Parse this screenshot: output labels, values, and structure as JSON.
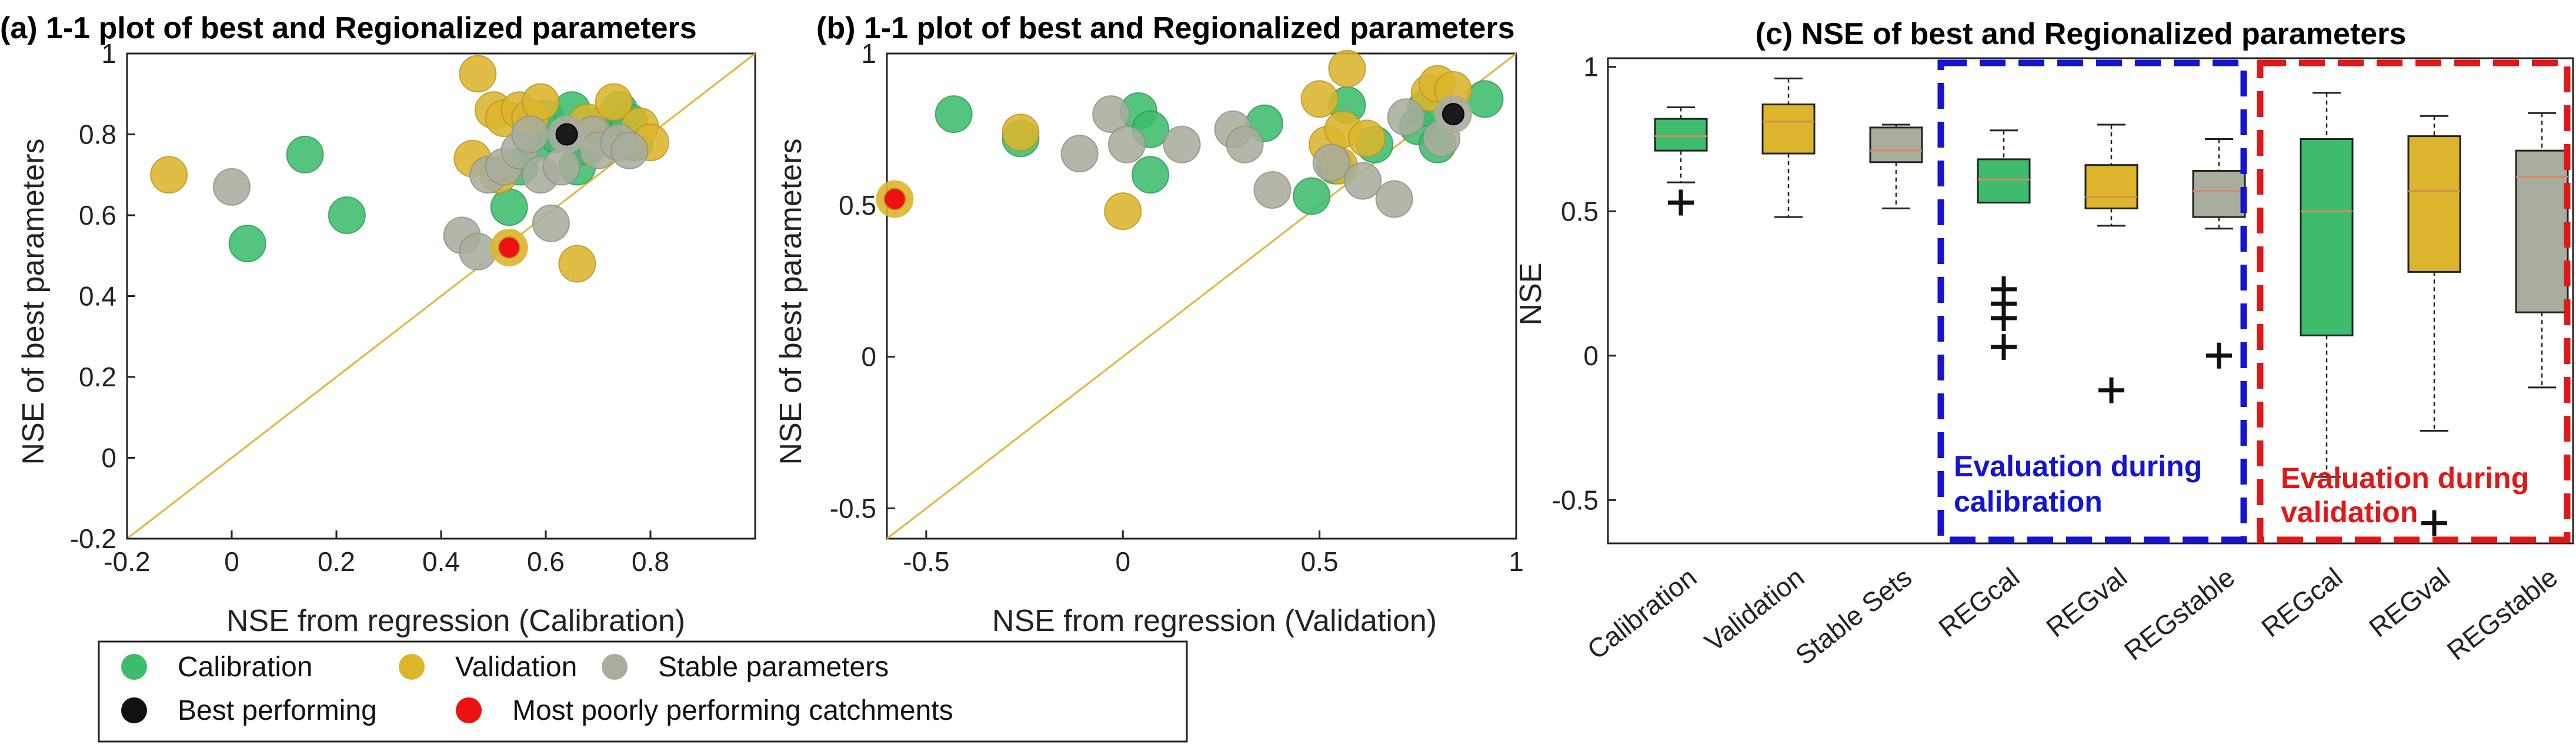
{
  "colors": {
    "calibration": "#3cbc6c",
    "calibration_edge": "#2a9a52",
    "validation": "#dcb52c",
    "validation_edge": "#b99422",
    "stable": "#a9ad9d",
    "stable_edge": "#8d9182",
    "best": "#1a1a1a",
    "worst": "#ee1111",
    "one_to_one": "#e3b43a",
    "box_cal": "#3cbc6c",
    "box_val": "#dcb52c",
    "box_stable": "#a9ad9d",
    "median": "#d88a5a",
    "blue_box": "#1414d2",
    "red_box": "#e01818"
  },
  "legend": {
    "items": [
      {
        "label": "Calibration",
        "color": "#3cbc6c"
      },
      {
        "label": "Validation",
        "color": "#dcb52c"
      },
      {
        "label": "Stable parameters",
        "color": "#a9ad9d"
      },
      {
        "label": "Best performing",
        "color": "#111111"
      },
      {
        "label": "Most poorly performing catchments",
        "color": "#ee1111"
      }
    ]
  },
  "chart_data": [
    {
      "type": "scatter",
      "title": "(a) 1-1 plot of best and Regionalized parameters",
      "xlabel": "NSE from regression (Calibration)",
      "ylabel": "NSE of best parameters",
      "xlim": [
        -0.2,
        1.0
      ],
      "ylim": [
        -0.2,
        1.0
      ],
      "xticks": [
        "-0.2",
        "0",
        "0.2",
        "0.4",
        "0.6",
        "0.8"
      ],
      "yticks": [
        "-0.2",
        "0",
        "0.2",
        "0.4",
        "0.6",
        "0.8",
        "1"
      ],
      "one_to_one": true,
      "series": [
        {
          "name": "Calibration",
          "points": [
            [
              0.03,
              0.53
            ],
            [
              0.14,
              0.75
            ],
            [
              0.22,
              0.6
            ],
            [
              0.53,
              0.62
            ],
            [
              0.55,
              0.72
            ],
            [
              0.58,
              0.78
            ],
            [
              0.62,
              0.8
            ],
            [
              0.66,
              0.72
            ],
            [
              0.68,
              0.77
            ],
            [
              0.7,
              0.82
            ],
            [
              0.74,
              0.86
            ],
            [
              0.76,
              0.83
            ],
            [
              0.77,
              0.78
            ],
            [
              0.6,
              0.84
            ],
            [
              0.65,
              0.86
            ]
          ]
        },
        {
          "name": "Validation",
          "points": [
            [
              -0.12,
              0.7
            ],
            [
              0.46,
              0.74
            ],
            [
              0.47,
              0.95
            ],
            [
              0.5,
              0.86
            ],
            [
              0.52,
              0.84
            ],
            [
              0.55,
              0.86
            ],
            [
              0.57,
              0.84
            ],
            [
              0.59,
              0.88
            ],
            [
              0.66,
              0.48
            ],
            [
              0.68,
              0.83
            ],
            [
              0.73,
              0.88
            ],
            [
              0.78,
              0.82
            ],
            [
              0.8,
              0.78
            ],
            [
              0.51,
              0.7
            ]
          ]
        },
        {
          "name": "Stable parameters",
          "points": [
            [
              0.0,
              0.67
            ],
            [
              0.44,
              0.55
            ],
            [
              0.47,
              0.51
            ],
            [
              0.49,
              0.7
            ],
            [
              0.52,
              0.72
            ],
            [
              0.55,
              0.76
            ],
            [
              0.57,
              0.8
            ],
            [
              0.59,
              0.7
            ],
            [
              0.61,
              0.58
            ],
            [
              0.63,
              0.72
            ],
            [
              0.69,
              0.8
            ],
            [
              0.7,
              0.76
            ],
            [
              0.74,
              0.78
            ],
            [
              0.76,
              0.76
            ]
          ]
        },
        {
          "name": "Best performing",
          "points": [
            [
              0.64,
              0.8
            ]
          ]
        },
        {
          "name": "Most poorly performing catchments",
          "points": [
            [
              0.53,
              0.52
            ]
          ]
        }
      ]
    },
    {
      "type": "scatter",
      "title": "(b) 1-1 plot of best and Regionalized parameters",
      "xlabel": "NSE from regression (Validation)",
      "ylabel": "NSE of best parameters",
      "xlim": [
        -0.6,
        1.0
      ],
      "ylim": [
        -0.6,
        1.0
      ],
      "xticks": [
        "-0.5",
        "0",
        "0.5",
        "1"
      ],
      "yticks": [
        "-0.5",
        "0",
        "0.5",
        "1"
      ],
      "one_to_one": true,
      "series": [
        {
          "name": "Calibration",
          "points": [
            [
              -0.43,
              0.8
            ],
            [
              -0.26,
              0.72
            ],
            [
              0.04,
              0.81
            ],
            [
              0.07,
              0.75
            ],
            [
              0.07,
              0.6
            ],
            [
              0.36,
              0.77
            ],
            [
              0.48,
              0.53
            ],
            [
              0.54,
              0.63
            ],
            [
              0.57,
              0.83
            ],
            [
              0.64,
              0.7
            ],
            [
              0.75,
              0.76
            ],
            [
              0.8,
              0.7
            ],
            [
              0.92,
              0.85
            ],
            [
              0.77,
              0.82
            ]
          ]
        },
        {
          "name": "Validation",
          "points": [
            [
              -0.26,
              0.74
            ],
            [
              0.0,
              0.48
            ],
            [
              0.5,
              0.85
            ],
            [
              0.52,
              0.7
            ],
            [
              0.56,
              0.75
            ],
            [
              0.57,
              0.95
            ],
            [
              0.62,
              0.72
            ],
            [
              0.78,
              0.87
            ],
            [
              0.8,
              0.9
            ],
            [
              0.84,
              0.88
            ],
            [
              0.55,
              0.63
            ]
          ]
        },
        {
          "name": "Stable parameters",
          "points": [
            [
              -0.11,
              0.67
            ],
            [
              -0.03,
              0.8
            ],
            [
              0.01,
              0.7
            ],
            [
              0.15,
              0.7
            ],
            [
              0.28,
              0.75
            ],
            [
              0.31,
              0.7
            ],
            [
              0.38,
              0.55
            ],
            [
              0.53,
              0.64
            ],
            [
              0.61,
              0.58
            ],
            [
              0.69,
              0.52
            ],
            [
              0.72,
              0.79
            ],
            [
              0.81,
              0.72
            ]
          ]
        },
        {
          "name": "Best performing",
          "points": [
            [
              0.84,
              0.8
            ]
          ]
        },
        {
          "name": "Most poorly performing catchments",
          "points": [
            [
              -0.58,
              0.52
            ]
          ]
        }
      ]
    },
    {
      "type": "box",
      "title": "(c) NSE of best and Regionalized parameters",
      "ylabel": "NSE",
      "ylim": [
        -0.65,
        1.03
      ],
      "yticks": [
        "-0.5",
        "0",
        "0.5",
        "1"
      ],
      "categories": [
        "Calibration",
        "Validation",
        "Stable Sets",
        "REGcal",
        "REGval",
        "REGstable",
        "REGcal",
        "REGval",
        "REGstable"
      ],
      "boxes": [
        {
          "label": "Calibration",
          "group": "cal",
          "min": 0.6,
          "q1": 0.71,
          "median": 0.76,
          "q3": 0.82,
          "max": 0.86,
          "outliers": [
            0.53
          ]
        },
        {
          "label": "Validation",
          "group": "val",
          "min": 0.48,
          "q1": 0.7,
          "median": 0.81,
          "q3": 0.87,
          "max": 0.96,
          "outliers": []
        },
        {
          "label": "Stable Sets",
          "group": "stable",
          "min": 0.51,
          "q1": 0.67,
          "median": 0.71,
          "q3": 0.79,
          "max": 0.8,
          "outliers": []
        },
        {
          "label": "REGcal",
          "group": "cal",
          "min": 0.53,
          "q1": 0.53,
          "median": 0.61,
          "q3": 0.68,
          "max": 0.78,
          "outliers": [
            0.23,
            0.18,
            0.13,
            0.03
          ]
        },
        {
          "label": "REGval",
          "group": "val",
          "min": 0.45,
          "q1": 0.51,
          "median": 0.55,
          "q3": 0.66,
          "max": 0.8,
          "outliers": [
            -0.12
          ]
        },
        {
          "label": "REGstable",
          "group": "stable",
          "min": 0.44,
          "q1": 0.48,
          "median": 0.57,
          "q3": 0.64,
          "max": 0.75,
          "outliers": [
            0.0
          ]
        },
        {
          "label": "REGcal",
          "group": "cal",
          "min": -0.42,
          "q1": 0.07,
          "median": 0.5,
          "q3": 0.75,
          "max": 0.91,
          "outliers": []
        },
        {
          "label": "REGval",
          "group": "val",
          "min": -0.26,
          "q1": 0.29,
          "median": 0.57,
          "q3": 0.76,
          "max": 0.83,
          "outliers": [
            -0.58
          ]
        },
        {
          "label": "REGstable",
          "group": "stable",
          "min": -0.11,
          "q1": 0.15,
          "median": 0.62,
          "q3": 0.71,
          "max": 0.84,
          "outliers": []
        }
      ],
      "annotations": [
        {
          "text_lines": [
            "Evaluation during",
            "calibration"
          ],
          "color": "#1414d2",
          "spans": [
            "REGcal",
            "REGval",
            "REGstable"
          ]
        },
        {
          "text_lines": [
            "Evaluation during",
            "validation"
          ],
          "color": "#e01818",
          "spans": [
            "REGcal",
            "REGval",
            "REGstable"
          ]
        }
      ]
    }
  ]
}
